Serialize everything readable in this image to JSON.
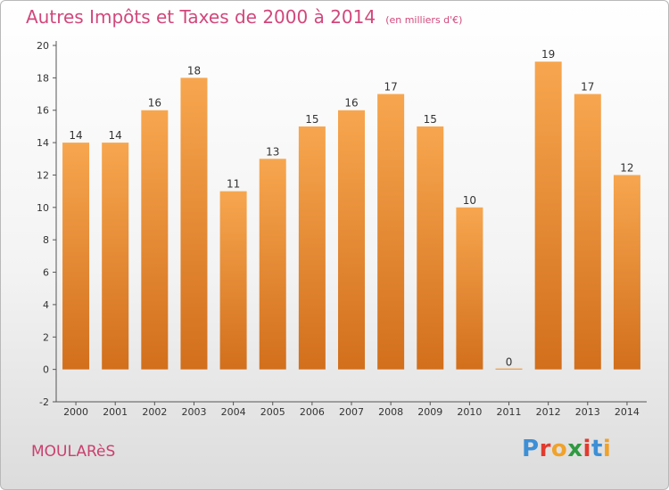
{
  "header": {
    "title": "Autres Impôts et Taxes de 2000 à 2014",
    "unit": "(en milliers d'€)"
  },
  "footer": {
    "place": "MOULARèS",
    "logo": "Proxiti"
  },
  "colors": {
    "bar_top": "#f7a64f",
    "bar_bottom": "#d26f1c",
    "title": "#d2477a",
    "logo_letters": [
      "#3d8fd6",
      "#e23b2e",
      "#f0a22a",
      "#2f9a40",
      "#e23b2e",
      "#3d8fd6",
      "#f0a22a"
    ]
  },
  "chart_data": {
    "type": "bar",
    "categories": [
      "2000",
      "2001",
      "2002",
      "2003",
      "2004",
      "2005",
      "2006",
      "2007",
      "2008",
      "2009",
      "2010",
      "2011",
      "2012",
      "2013",
      "2014"
    ],
    "values": [
      14,
      14,
      16,
      18,
      11,
      13,
      15,
      16,
      17,
      15,
      10,
      0,
      19,
      17,
      12
    ],
    "title": "Autres Impôts et Taxes de 2000 à 2014",
    "ylim": [
      -2,
      20
    ],
    "yticks": [
      -2,
      0,
      2,
      4,
      6,
      8,
      10,
      12,
      14,
      16,
      18,
      20
    ],
    "grid": false,
    "data_labels": true
  }
}
